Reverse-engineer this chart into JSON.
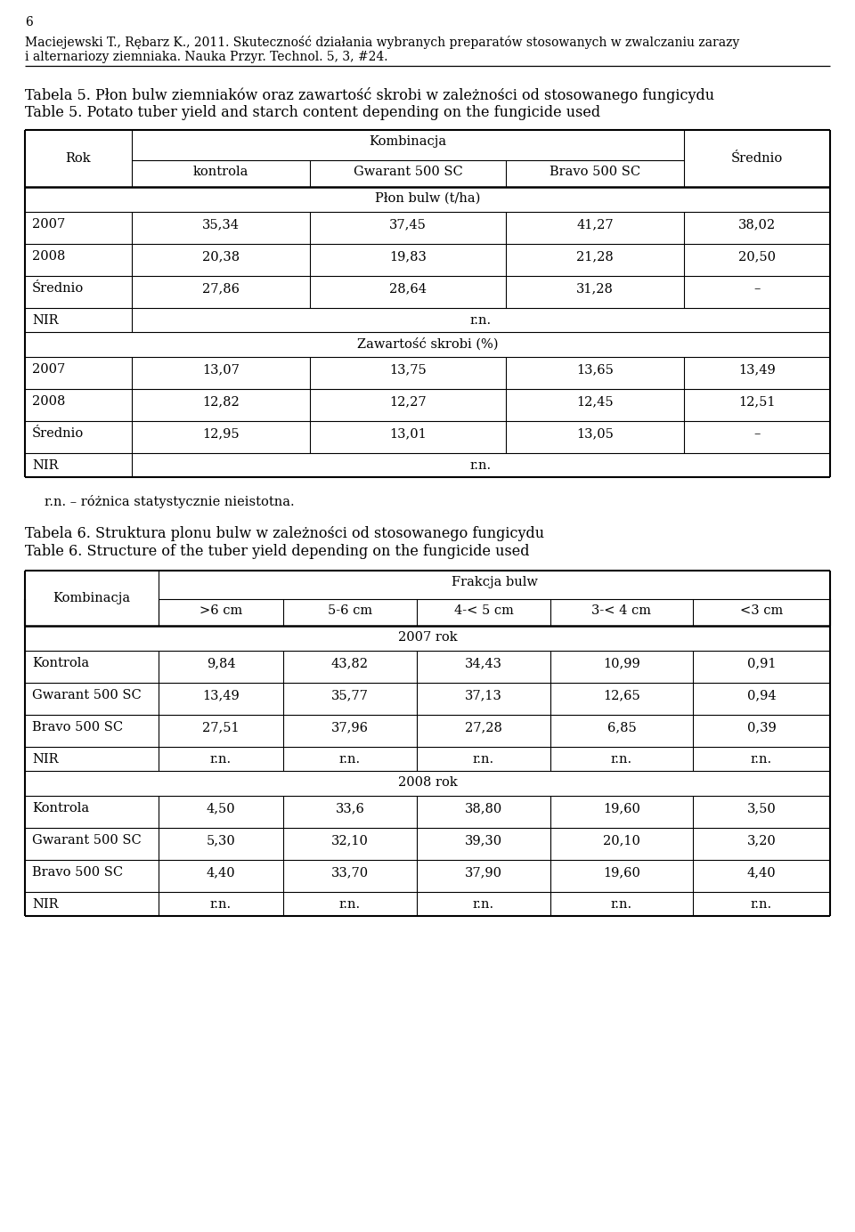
{
  "page_number": "6",
  "header_line1": "Maciejewski T., Rębarz K., 2011. Skuteczność działania wybranych preparatów stosowanych w zwalczaniu zarazy",
  "header_line2": "i alternariozy ziemniaka. Nauka Przyr. Technol. 5, 3, #24.",
  "table5_title_pl": "Tabela 5. Płon bulw ziemniaków oraz zawartość skrobi w zależności od stosowanego fungicydu",
  "table5_title_en": "Table 5. Potato tuber yield and starch content depending on the fungicide used",
  "table5_kombinacja": "Kombinacja",
  "table5_rok": "Rok",
  "table5_srednio": "Średnio",
  "table5_col2": "kontrola",
  "table5_col3": "Gwarant 500 SC",
  "table5_col4": "Bravo 500 SC",
  "table5_section1": "Płon bulw (t/ha)",
  "table5_rows_section1": [
    [
      "2007",
      "35,34",
      "37,45",
      "41,27",
      "38,02"
    ],
    [
      "2008",
      "20,38",
      "19,83",
      "21,28",
      "20,50"
    ],
    [
      "Średnio",
      "27,86",
      "28,64",
      "31,28",
      "–"
    ],
    [
      "NIR",
      "r.n.",
      "",
      "",
      ""
    ]
  ],
  "table5_section2": "Zawartość skrobi (%)",
  "table5_rows_section2": [
    [
      "2007",
      "13,07",
      "13,75",
      "13,65",
      "13,49"
    ],
    [
      "2008",
      "12,82",
      "12,27",
      "12,45",
      "12,51"
    ],
    [
      "Średnio",
      "12,95",
      "13,01",
      "13,05",
      "–"
    ],
    [
      "NIR",
      "r.n.",
      "",
      "",
      ""
    ]
  ],
  "footnote": "r.n. – różnica statystycznie nieistotna.",
  "table6_title_pl": "Tabela 6. Struktura plonu bulw w zależności od stosowanego fungicydu",
  "table6_title_en": "Table 6. Structure of the tuber yield depending on the fungicide used",
  "table6_kombinacja": "Kombinacja",
  "table6_frakcja": "Frakcja bulw",
  "table6_col_headers": [
    ">6 cm",
    "5-6 cm",
    "4-< 5 cm",
    "3-< 4 cm",
    "<3 cm"
  ],
  "table6_section1": "2007 rok",
  "table6_rows_section1": [
    [
      "Kontrola",
      "9,84",
      "43,82",
      "34,43",
      "10,99",
      "0,91"
    ],
    [
      "Gwarant 500 SC",
      "13,49",
      "35,77",
      "37,13",
      "12,65",
      "0,94"
    ],
    [
      "Bravo 500 SC",
      "27,51",
      "37,96",
      "27,28",
      "6,85",
      "0,39"
    ],
    [
      "NIR",
      "r.n.",
      "r.n.",
      "r.n.",
      "r.n.",
      "r.n."
    ]
  ],
  "table6_section2": "2008 rok",
  "table6_rows_section2": [
    [
      "Kontrola",
      "4,50",
      "33,6",
      "38,80",
      "19,60",
      "3,50"
    ],
    [
      "Gwarant 500 SC",
      "5,30",
      "32,10",
      "39,30",
      "20,10",
      "3,20"
    ],
    [
      "Bravo 500 SC",
      "4,40",
      "33,70",
      "37,90",
      "19,60",
      "4,40"
    ],
    [
      "NIR",
      "r.n.",
      "r.n.",
      "r.n.",
      "r.n.",
      "r.n."
    ]
  ],
  "bg_color": "#ffffff"
}
